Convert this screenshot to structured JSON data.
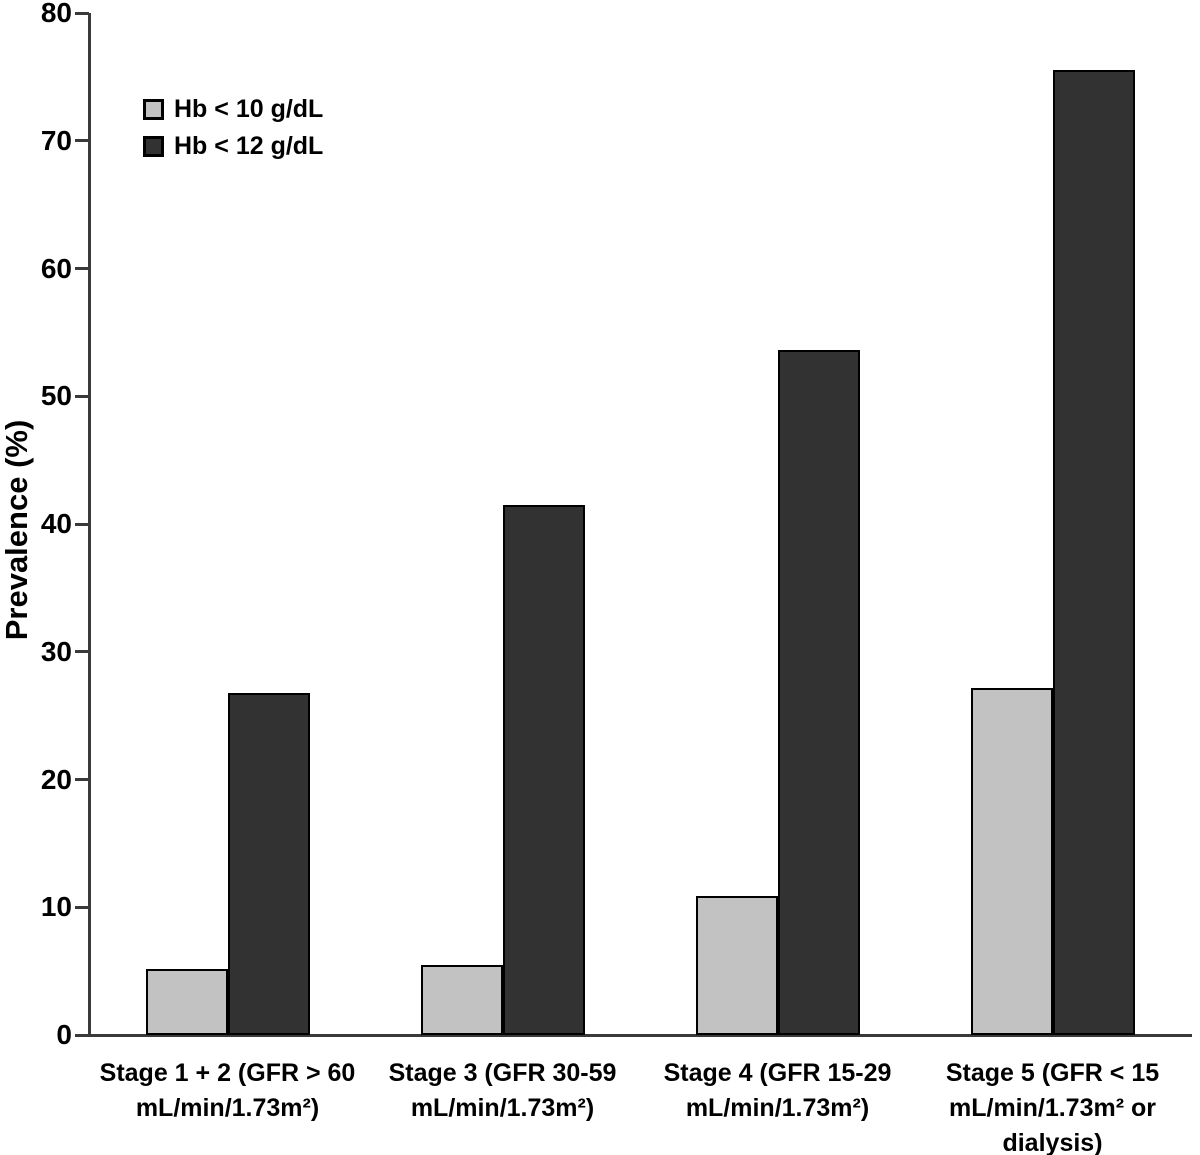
{
  "chart_data": {
    "type": "bar",
    "title": "",
    "xlabel": "",
    "ylabel": "Prevalence (%)",
    "ylim": [
      0,
      80
    ],
    "yticks": [
      0,
      10,
      20,
      30,
      40,
      50,
      60,
      70,
      80
    ],
    "grid": false,
    "legend_position": "top-left-inside",
    "categories": [
      "Stage 1 + 2 (GFR > 60 mL/min/1.73m²)",
      "Stage 3 (GFR 30-59 mL/min/1.73m²)",
      "Stage 4 (GFR 15-29 mL/min/1.73m²)",
      "Stage 5 (GFR < 15 mL/min/1.73m² or dialysis)"
    ],
    "category_label_lines": [
      [
        "Stage 1 + 2 (GFR > 60",
        "mL/min/1.73m²)"
      ],
      [
        "Stage 3 (GFR 30-59",
        "mL/min/1.73m²)"
      ],
      [
        "Stage 4 (GFR 15-29",
        "mL/min/1.73m²)"
      ],
      [
        "Stage 5 (GFR < 15",
        "mL/min/1.73m² or",
        "dialysis)"
      ]
    ],
    "series": [
      {
        "name": "Hb < 10 g/dL",
        "color": "#c2c2c2",
        "values": [
          5.2,
          5.5,
          10.9,
          27.2
        ]
      },
      {
        "name": "Hb < 12 g/dL",
        "color": "#323232",
        "values": [
          26.8,
          41.5,
          53.6,
          75.5
        ]
      }
    ],
    "bar_outline_color": "#000000",
    "axis_color": "#3a3a3a"
  }
}
